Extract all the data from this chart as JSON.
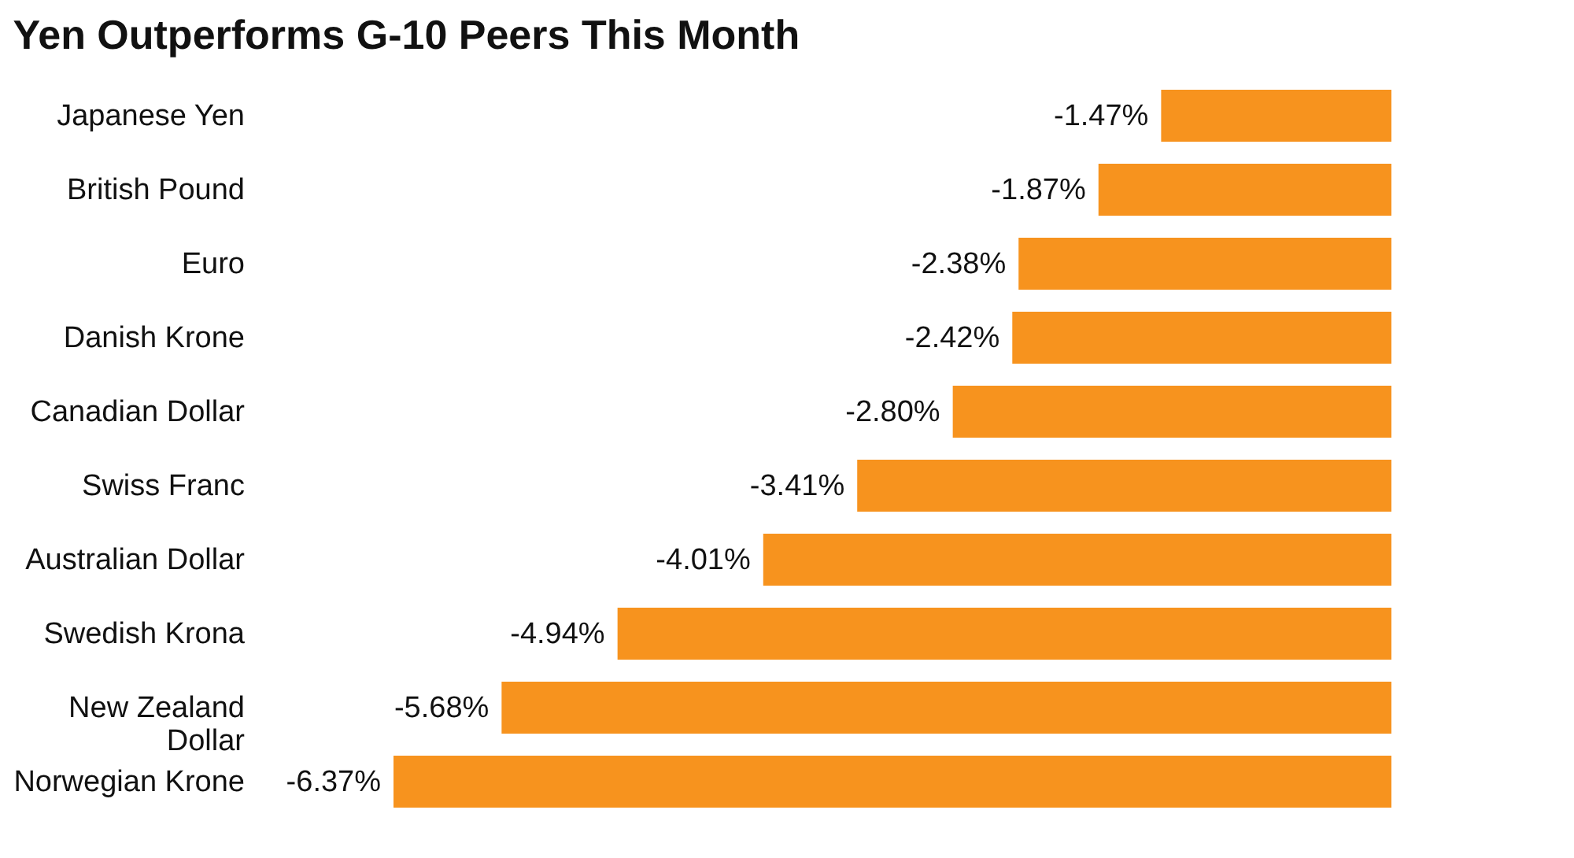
{
  "chart_data": {
    "type": "bar",
    "orientation": "horizontal",
    "title": "Yen Outperforms G-10 Peers This Month",
    "categories": [
      "Japanese Yen",
      "British Pound",
      "Euro",
      "Danish Krone",
      "Canadian Dollar",
      "Swiss Franc",
      "Australian Dollar",
      "Swedish Krona",
      "New Zealand\nDollar",
      "Norwegian Krone"
    ],
    "values": [
      -1.47,
      -1.87,
      -2.38,
      -2.42,
      -2.8,
      -3.41,
      -4.01,
      -4.94,
      -5.68,
      -6.37
    ],
    "value_labels": [
      "-1.47%",
      "-1.87%",
      "-2.38%",
      "-2.42%",
      "-2.80%",
      "-3.41%",
      "-4.01%",
      "-4.94%",
      "-5.68%",
      "-6.37%"
    ],
    "color": "#f7931e"
  }
}
